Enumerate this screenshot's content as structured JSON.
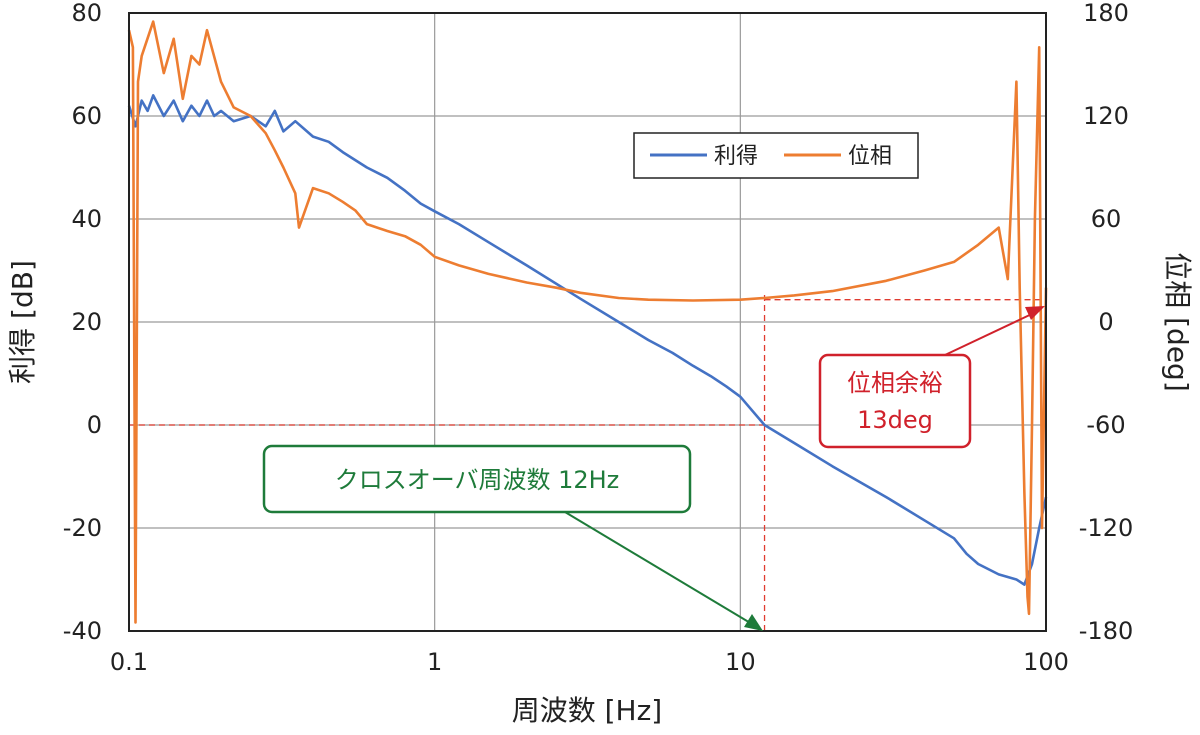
{
  "chart_data": {
    "type": "line",
    "x_scale": "log",
    "xlim": [
      0.1,
      100
    ],
    "ylim": [
      -40,
      80
    ],
    "y2lim": [
      -180,
      180
    ],
    "xlabel": "周波数 [Hz]",
    "ylabel": "利得 [dB]",
    "y2label": "位相 [deg]",
    "x_ticks": [
      "0.1",
      "1",
      "10",
      "100"
    ],
    "y_ticks": [
      "80",
      "60",
      "40",
      "20",
      "0",
      "-20",
      "-40"
    ],
    "y2_ticks": [
      "180",
      "120",
      "60",
      "0",
      "-60",
      "-120",
      "-180"
    ],
    "grid": true,
    "legend_position": "top-right",
    "series": [
      {
        "name": "利得",
        "axis": "left",
        "color": "#4472C4",
        "points": [
          [
            0.1,
            62
          ],
          [
            0.105,
            58
          ],
          [
            0.11,
            63
          ],
          [
            0.115,
            61
          ],
          [
            0.12,
            64
          ],
          [
            0.13,
            60
          ],
          [
            0.14,
            63
          ],
          [
            0.15,
            59
          ],
          [
            0.16,
            62
          ],
          [
            0.17,
            60
          ],
          [
            0.18,
            63
          ],
          [
            0.19,
            60
          ],
          [
            0.2,
            61
          ],
          [
            0.22,
            59
          ],
          [
            0.25,
            60
          ],
          [
            0.28,
            58
          ],
          [
            0.3,
            61
          ],
          [
            0.32,
            57
          ],
          [
            0.35,
            59
          ],
          [
            0.4,
            56
          ],
          [
            0.45,
            55
          ],
          [
            0.5,
            53
          ],
          [
            0.6,
            50
          ],
          [
            0.7,
            48
          ],
          [
            0.8,
            45.5
          ],
          [
            0.9,
            43
          ],
          [
            1.0,
            41.5
          ],
          [
            1.2,
            39
          ],
          [
            1.5,
            35.5
          ],
          [
            2.0,
            31
          ],
          [
            3.0,
            24.5
          ],
          [
            4.0,
            20
          ],
          [
            5.0,
            16.5
          ],
          [
            6.0,
            14
          ],
          [
            7.0,
            11.5
          ],
          [
            8.0,
            9.5
          ],
          [
            9.0,
            7.5
          ],
          [
            10.0,
            5.5
          ],
          [
            12.0,
            0
          ],
          [
            15.0,
            -3.5
          ],
          [
            20.0,
            -8
          ],
          [
            30.0,
            -14
          ],
          [
            40.0,
            -18.5
          ],
          [
            50.0,
            -22
          ],
          [
            55.0,
            -25
          ],
          [
            60.0,
            -27
          ],
          [
            70.0,
            -29
          ],
          [
            80.0,
            -30
          ],
          [
            85.0,
            -31
          ],
          [
            90.0,
            -27
          ],
          [
            95.0,
            -20
          ],
          [
            100.0,
            -14
          ]
        ]
      },
      {
        "name": "位相",
        "axis": "right",
        "color": "#ED7D31",
        "points": [
          [
            0.1,
            170
          ],
          [
            0.103,
            160
          ],
          [
            0.105,
            -175
          ],
          [
            0.107,
            140
          ],
          [
            0.11,
            155
          ],
          [
            0.12,
            175
          ],
          [
            0.13,
            145
          ],
          [
            0.14,
            165
          ],
          [
            0.15,
            130
          ],
          [
            0.16,
            155
          ],
          [
            0.17,
            150
          ],
          [
            0.18,
            170
          ],
          [
            0.2,
            140
          ],
          [
            0.22,
            125
          ],
          [
            0.25,
            120
          ],
          [
            0.28,
            110
          ],
          [
            0.3,
            100
          ],
          [
            0.32,
            90
          ],
          [
            0.35,
            75
          ],
          [
            0.36,
            55
          ],
          [
            0.4,
            78
          ],
          [
            0.45,
            75
          ],
          [
            0.5,
            70
          ],
          [
            0.55,
            65
          ],
          [
            0.6,
            57
          ],
          [
            0.7,
            53
          ],
          [
            0.8,
            50
          ],
          [
            0.9,
            45
          ],
          [
            1.0,
            38
          ],
          [
            1.2,
            33
          ],
          [
            1.5,
            28
          ],
          [
            2.0,
            23
          ],
          [
            2.5,
            20
          ],
          [
            3.0,
            17
          ],
          [
            4.0,
            14
          ],
          [
            5.0,
            13
          ],
          [
            7.0,
            12.5
          ],
          [
            10.0,
            13
          ],
          [
            12.0,
            14
          ],
          [
            15.0,
            15.5
          ],
          [
            20.0,
            18
          ],
          [
            30.0,
            24
          ],
          [
            40.0,
            30
          ],
          [
            50.0,
            35
          ],
          [
            60.0,
            45
          ],
          [
            70.0,
            55
          ],
          [
            75.0,
            25
          ],
          [
            80.0,
            140
          ],
          [
            82.0,
            20
          ],
          [
            85.0,
            -100
          ],
          [
            87.0,
            -160
          ],
          [
            88.0,
            -170
          ],
          [
            90.0,
            -60
          ],
          [
            92.0,
            60
          ],
          [
            95.0,
            160
          ],
          [
            97.0,
            -120
          ],
          [
            100.0,
            20
          ]
        ]
      }
    ],
    "reference_lines": [
      {
        "axis": "left",
        "y": 0,
        "x_from": 0.1,
        "x_to": 12,
        "color": "#E03C31"
      },
      {
        "axis": "x",
        "x": 12,
        "y_from": -40,
        "y_to": 26,
        "color": "#E03C31"
      },
      {
        "axis": "right",
        "y": 13,
        "x_from": 12,
        "x_to": 100,
        "color": "#E03C31"
      }
    ],
    "annotations": [
      {
        "text": "クロスオーバ周波数  12Hz",
        "color": "#1E7B3A",
        "points_to": [
          12,
          -40
        ]
      },
      {
        "text_lines": [
          "位相余裕",
          "13deg"
        ],
        "color": "#D0212B",
        "points_to": [
          100,
          13
        ],
        "points_to_axis": "right"
      }
    ]
  }
}
